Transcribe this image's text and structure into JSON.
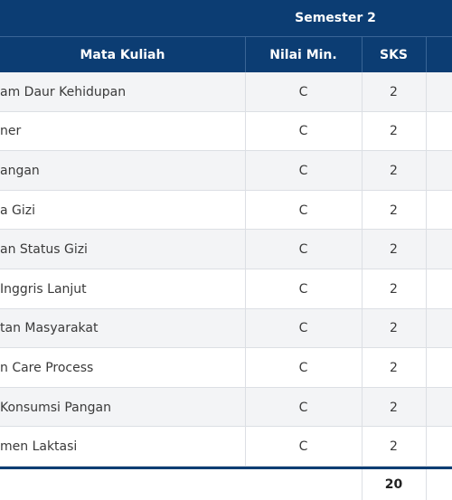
{
  "table": {
    "group_header": "Semester 2",
    "columns": [
      "Mata Kuliah",
      "Nilai Min.",
      "SKS"
    ],
    "rows": [
      [
        "am Daur Kehidupan",
        "C",
        2
      ],
      [
        "ner",
        "C",
        2
      ],
      [
        "angan",
        "C",
        2
      ],
      [
        "a Gizi",
        "C",
        2
      ],
      [
        "an Status Gizi",
        "C",
        2
      ],
      [
        " Inggris Lanjut",
        "C",
        2
      ],
      [
        "tan Masyarakat",
        "C",
        2
      ],
      [
        "n Care Process",
        "C",
        2
      ],
      [
        "Konsumsi Pangan",
        "C",
        2
      ],
      [
        "men Laktasi",
        "C",
        2
      ]
    ],
    "total": 20
  }
}
